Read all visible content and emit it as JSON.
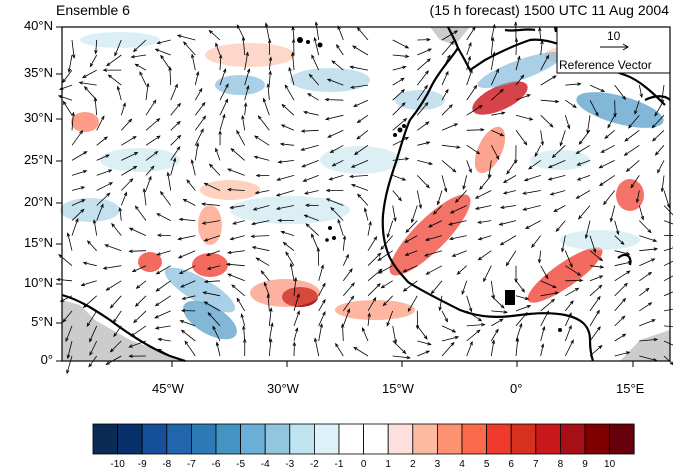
{
  "title_left": "Ensemble 6",
  "title_right": "(15 h forecast) 1500 UTC 11 Aug 2004",
  "lat_labels": [
    "40°N",
    "35°N",
    "30°N",
    "25°N",
    "20°N",
    "15°N",
    "10°N",
    "5°N",
    "0°"
  ],
  "lon_labels": [
    "45°W",
    "30°W",
    "15°W",
    "0°",
    "15°E"
  ],
  "reference_vector": {
    "value": "10",
    "label": "Reference Vector"
  },
  "colorbar": {
    "labels": [
      "-10",
      "-9",
      "-8",
      "-7",
      "-6",
      "-5",
      "-4",
      "-3",
      "-2",
      "-1",
      "0",
      "1",
      "2",
      "3",
      "4",
      "5",
      "6",
      "7",
      "8",
      "9",
      "10"
    ],
    "colors": [
      "#0b2a55",
      "#08306b",
      "#16509a",
      "#2166ac",
      "#2c7bb6",
      "#4393c3",
      "#6baed6",
      "#92c5de",
      "#bfe3ef",
      "#ddf1f8",
      "#ffffff",
      "#ffffff",
      "#fde0dd",
      "#fcbba1",
      "#fc9272",
      "#fb6a4a",
      "#ef3b2c",
      "#d7301f",
      "#cb181d",
      "#a50f15",
      "#7f0000",
      "#67000d"
    ]
  },
  "colors": {
    "land_outline": "#000000",
    "missing": "#cccccc",
    "vectors": "#000000"
  }
}
